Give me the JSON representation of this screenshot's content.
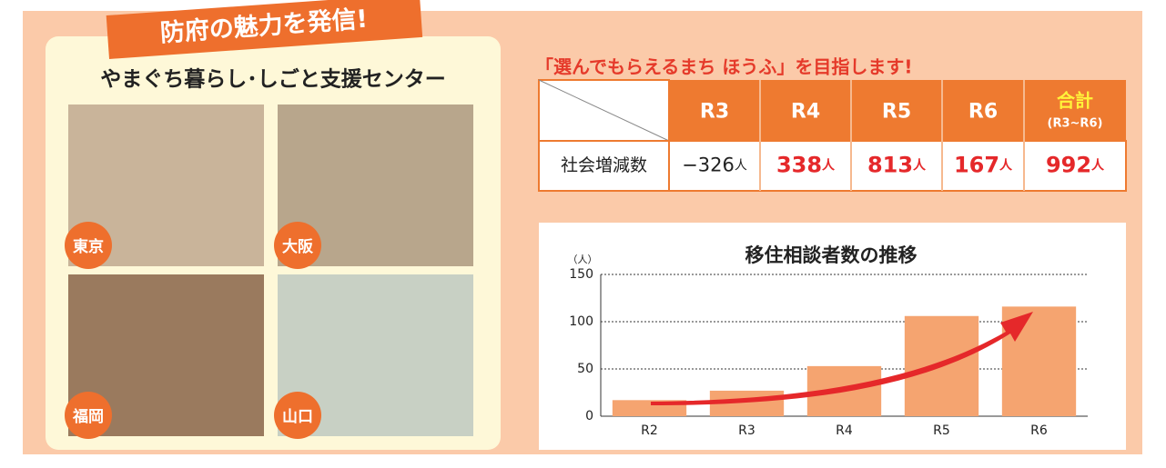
{
  "badge": "防府の魅力を発信!",
  "center_title": "やまぐち暮らし･しごと支援センター",
  "photos": [
    {
      "label": "東京"
    },
    {
      "label": "大阪"
    },
    {
      "label": "福岡"
    },
    {
      "label": "山口"
    }
  ],
  "heading": "「選んでもらえるまち ほうふ」を目指します!",
  "table": {
    "header": [
      "R3",
      "R4",
      "R5",
      "R6"
    ],
    "total_header": "合計",
    "total_sub": "(R3~R6)",
    "row_label": "社会増減数",
    "cells": [
      {
        "number": "−326",
        "unit": "人"
      },
      {
        "number": "338",
        "unit": "人"
      },
      {
        "number": "813",
        "unit": "人"
      },
      {
        "number": "167",
        "unit": "人"
      },
      {
        "number": "992",
        "unit": "人"
      }
    ]
  },
  "chart_data": {
    "type": "bar",
    "title": "移住相談者数の推移",
    "y_unit": "（人）",
    "categories": [
      "R2",
      "R3",
      "R4",
      "R5",
      "R6"
    ],
    "values": [
      17,
      27,
      53,
      106,
      116
    ],
    "color": "#f5a470",
    "ylim": [
      0,
      150
    ],
    "yticks": [
      0,
      50,
      100,
      150
    ],
    "grid": true
  }
}
